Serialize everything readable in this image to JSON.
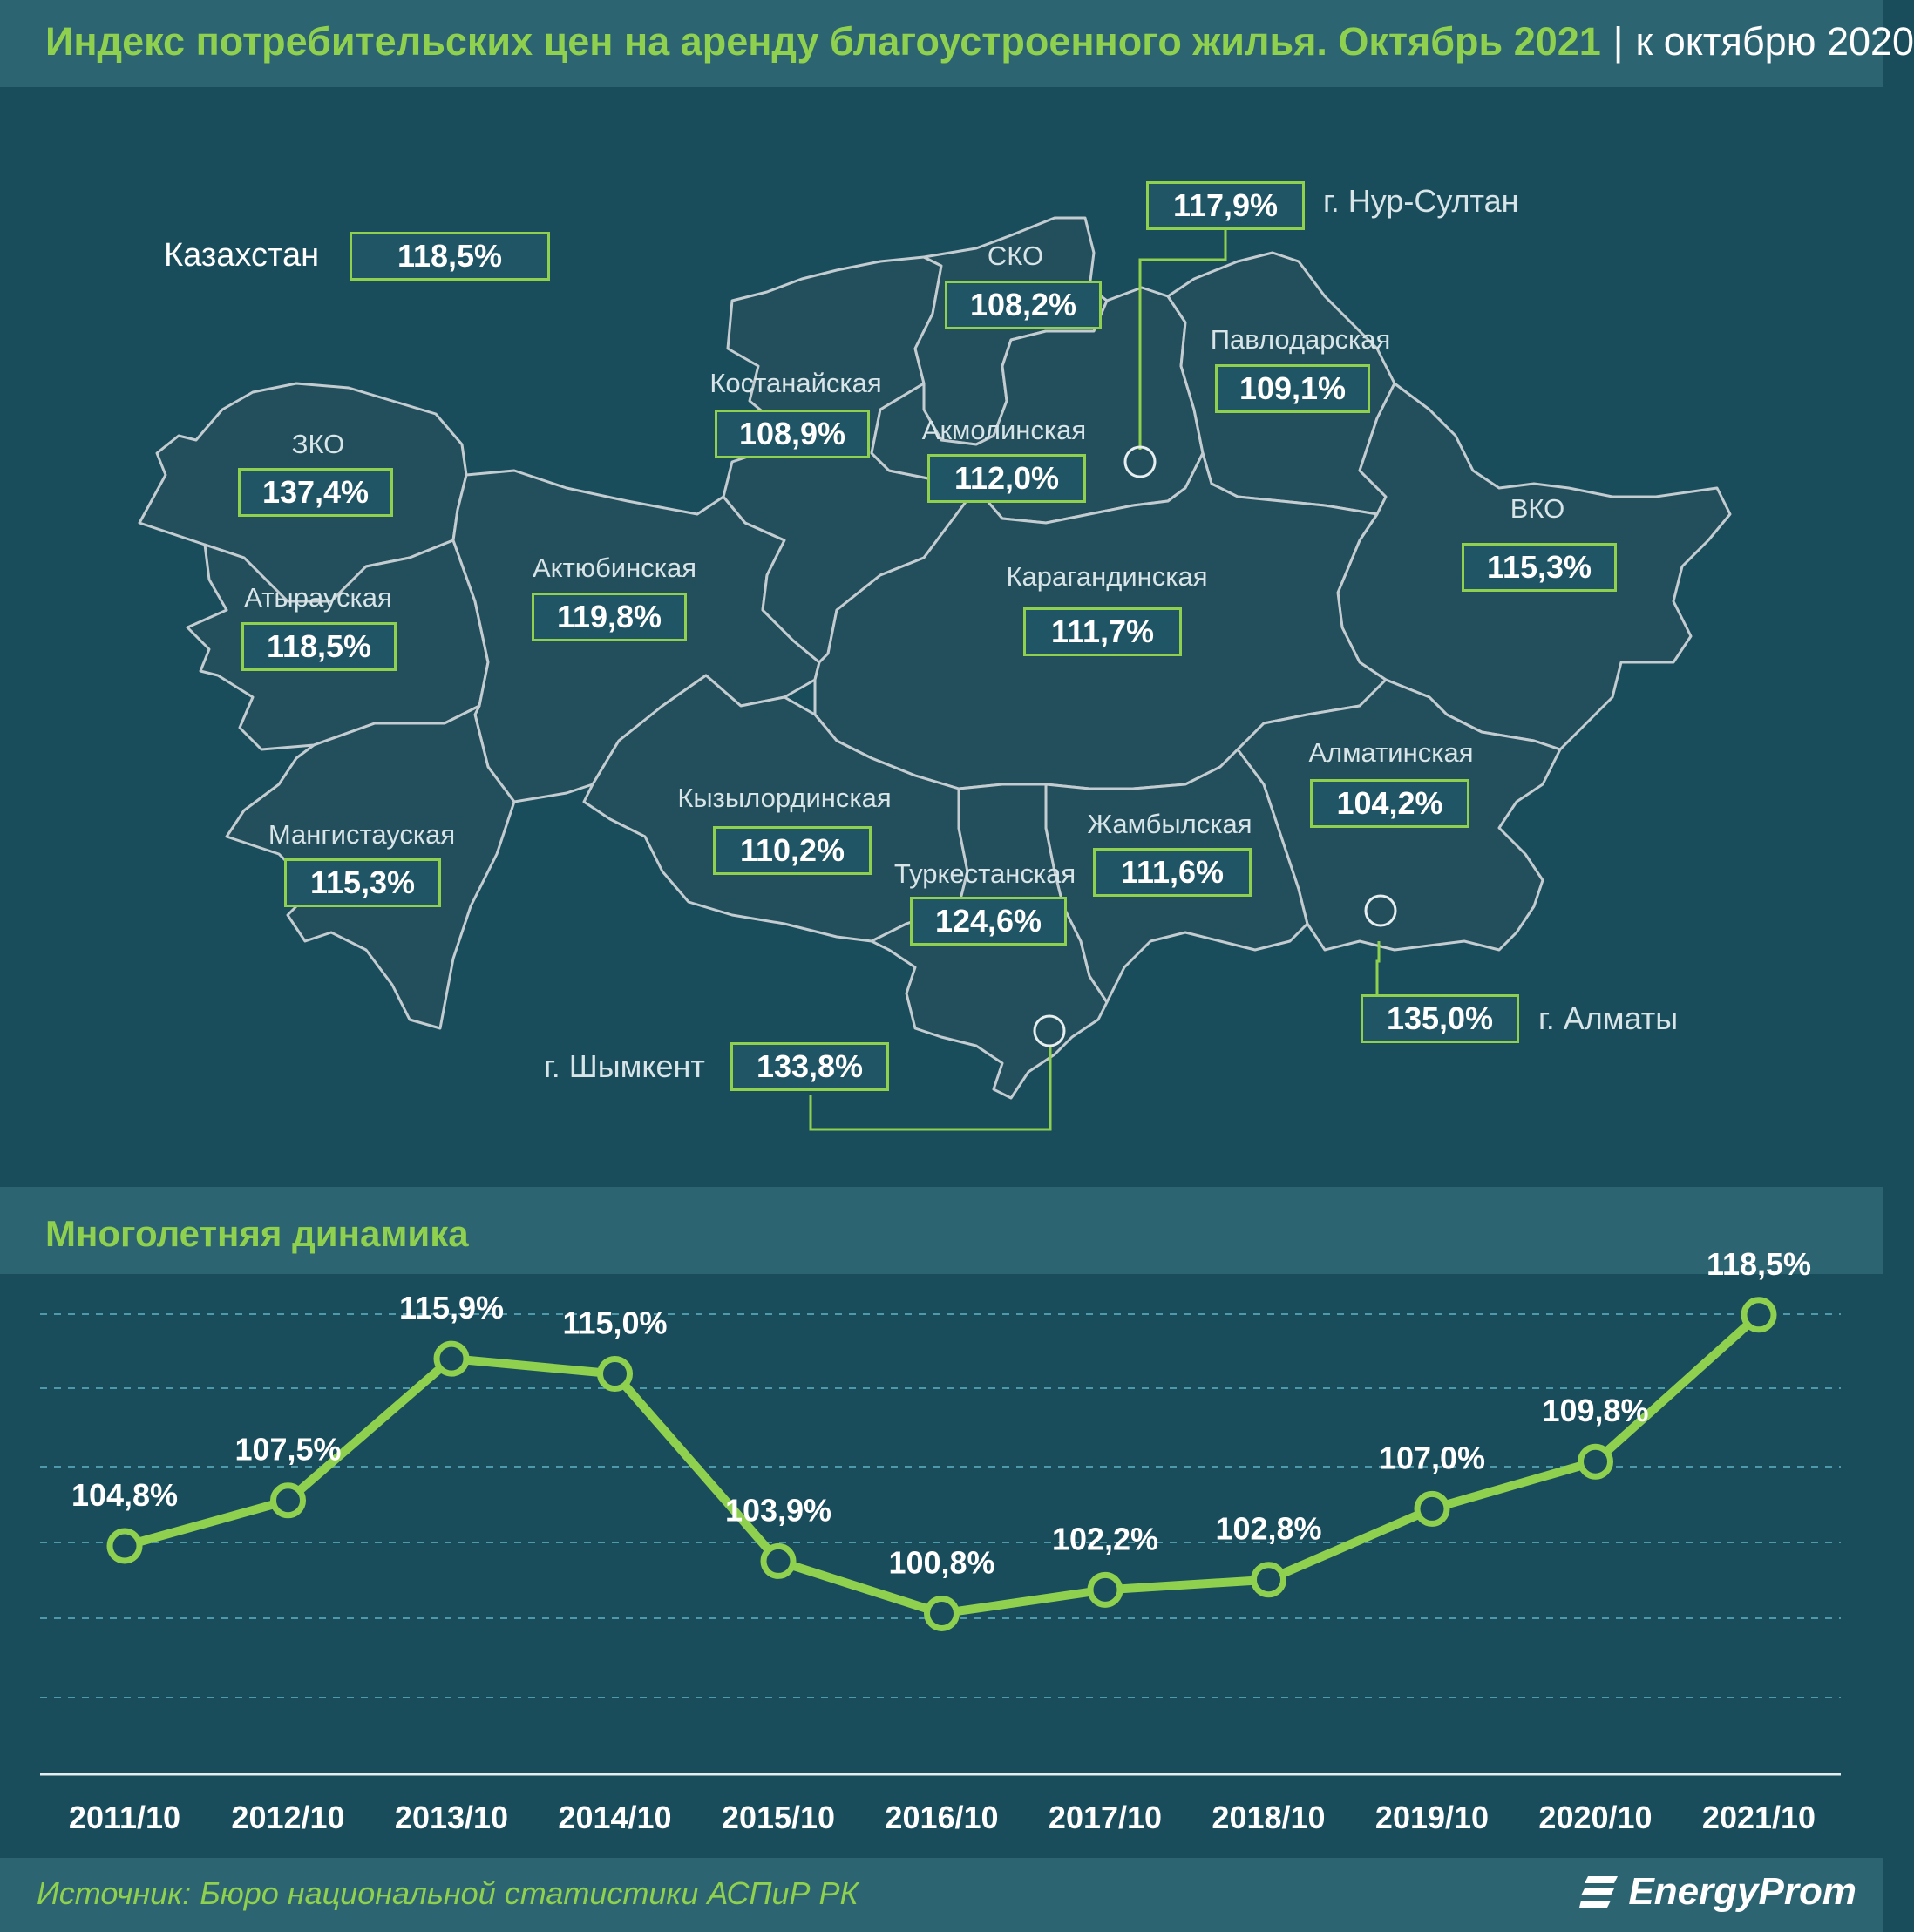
{
  "header": {
    "title": "Индекс потребительских цен на аренду благоустроенного жилья. Октябрь 2021",
    "separator": "|",
    "subtitle": "к октябрю 2020"
  },
  "kazakhstan": {
    "label": "Казахстан",
    "value": "118,5%"
  },
  "regions": {
    "zko": {
      "name": "ЗКО",
      "value": "137,4%"
    },
    "atyrau": {
      "name": "Атырауская",
      "value": "118,5%"
    },
    "mangistau": {
      "name": "Мангистауская",
      "value": "115,3%"
    },
    "aktobe": {
      "name": "Актюбинская",
      "value": "119,8%"
    },
    "kostanay": {
      "name": "Костанайская",
      "value": "108,9%"
    },
    "sko": {
      "name": "СКО",
      "value": "108,2%"
    },
    "akmola": {
      "name": "Акмолинская",
      "value": "112,0%"
    },
    "pavlodar": {
      "name": "Павлодарская",
      "value": "109,1%"
    },
    "vko": {
      "name": "ВКО",
      "value": "115,3%"
    },
    "karaganda": {
      "name": "Карагандинская",
      "value": "111,7%"
    },
    "kyzylorda": {
      "name": "Кызылординская",
      "value": "110,2%"
    },
    "turkestan": {
      "name": "Туркестанская",
      "value": "124,6%"
    },
    "zhambyl": {
      "name": "Жамбылская",
      "value": "111,6%"
    },
    "almaty_reg": {
      "name": "Алматинская",
      "value": "104,2%"
    }
  },
  "cities": {
    "nur_sultan": {
      "name": "г. Нур-Султан",
      "value": "117,9%"
    },
    "almaty": {
      "name": "г. Алматы",
      "value": "135,0%"
    },
    "shymkent": {
      "name": "г. Шымкент",
      "value": "133,8%"
    }
  },
  "section2": {
    "title": "Многолетняя динамика"
  },
  "chart_data": {
    "type": "line",
    "categories": [
      "2011/10",
      "2012/10",
      "2013/10",
      "2014/10",
      "2015/10",
      "2016/10",
      "2017/10",
      "2018/10",
      "2019/10",
      "2020/10",
      "2021/10"
    ],
    "series": [
      {
        "values": [
          104.8,
          107.5,
          115.9,
          115.0,
          103.9,
          100.8,
          102.2,
          102.8,
          107.0,
          109.8,
          118.5
        ]
      }
    ],
    "value_labels": [
      "104,8%",
      "107,5%",
      "115,9%",
      "115,0%",
      "103,9%",
      "100,8%",
      "102,2%",
      "102,8%",
      "107,0%",
      "109,8%",
      "118,5%"
    ],
    "grid": true,
    "line_color": "#8fd14f"
  },
  "footer": {
    "source": "Источник: Бюро национальной статистики АСПиР РК",
    "brand": "EnergyProm"
  }
}
